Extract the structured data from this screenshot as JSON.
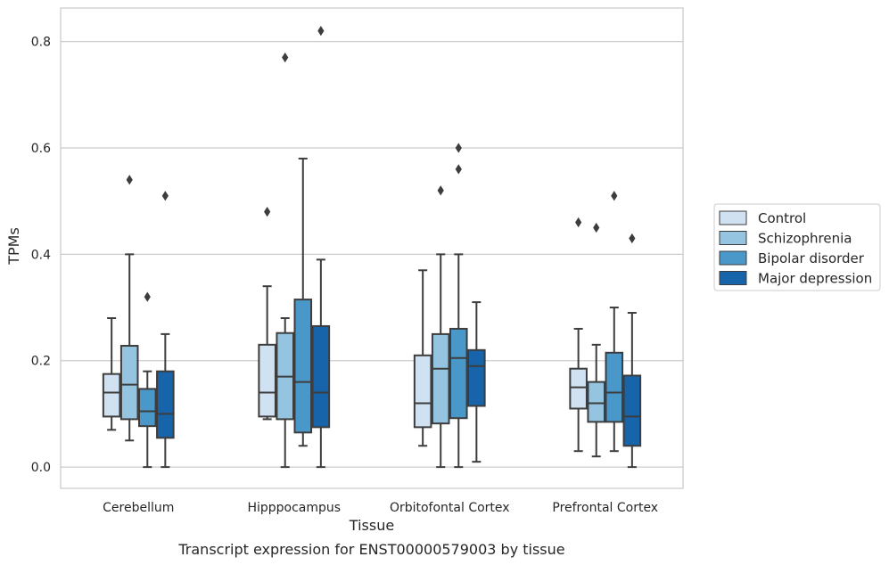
{
  "chart_data": {
    "type": "boxplot",
    "caption": "Transcript expression for ENST00000579003 by tissue",
    "xlabel": "Tissue",
    "ylabel": "TPMs",
    "ylim": [
      -0.04,
      0.863
    ],
    "yticks": [
      0.0,
      0.2,
      0.4,
      0.6,
      0.8
    ],
    "ytick_labels": [
      "0.0",
      "0.2",
      "0.4",
      "0.6",
      "0.8"
    ],
    "grid": "horizontal",
    "legend_position": "right",
    "categories": [
      "Cerebellum",
      "Hipppocampus",
      "Orbitofontal Cortex",
      "Prefrontal Cortex"
    ],
    "series": [
      {
        "name": "Control",
        "color": "#d0e1f2",
        "boxes": [
          {
            "whislo": 0.07,
            "q1": 0.095,
            "med": 0.14,
            "q3": 0.175,
            "whishi": 0.28,
            "fliers": []
          },
          {
            "whislo": 0.09,
            "q1": 0.095,
            "med": 0.14,
            "q3": 0.23,
            "whishi": 0.34,
            "fliers": [
              0.48
            ]
          },
          {
            "whislo": 0.04,
            "q1": 0.075,
            "med": 0.12,
            "q3": 0.21,
            "whishi": 0.37,
            "fliers": []
          },
          {
            "whislo": 0.03,
            "q1": 0.11,
            "med": 0.15,
            "q3": 0.185,
            "whishi": 0.26,
            "fliers": [
              0.46
            ]
          }
        ]
      },
      {
        "name": "Schizophrenia",
        "color": "#94c4df",
        "boxes": [
          {
            "whislo": 0.05,
            "q1": 0.09,
            "med": 0.155,
            "q3": 0.228,
            "whishi": 0.4,
            "fliers": [
              0.54
            ]
          },
          {
            "whislo": 0.0,
            "q1": 0.09,
            "med": 0.17,
            "q3": 0.252,
            "whishi": 0.28,
            "fliers": [
              0.77
            ]
          },
          {
            "whislo": 0.0,
            "q1": 0.082,
            "med": 0.185,
            "q3": 0.25,
            "whishi": 0.4,
            "fliers": [
              0.52
            ]
          },
          {
            "whislo": 0.02,
            "q1": 0.085,
            "med": 0.12,
            "q3": 0.16,
            "whishi": 0.23,
            "fliers": [
              0.45
            ]
          }
        ]
      },
      {
        "name": "Bipolar disorder",
        "color": "#4a98c9",
        "boxes": [
          {
            "whislo": 0.0,
            "q1": 0.077,
            "med": 0.105,
            "q3": 0.147,
            "whishi": 0.18,
            "fliers": [
              0.32
            ]
          },
          {
            "whislo": 0.04,
            "q1": 0.065,
            "med": 0.16,
            "q3": 0.315,
            "whishi": 0.58,
            "fliers": []
          },
          {
            "whislo": 0.0,
            "q1": 0.092,
            "med": 0.205,
            "q3": 0.26,
            "whishi": 0.4,
            "fliers": [
              0.56,
              0.6
            ]
          },
          {
            "whislo": 0.03,
            "q1": 0.085,
            "med": 0.14,
            "q3": 0.215,
            "whishi": 0.3,
            "fliers": [
              0.51
            ]
          }
        ]
      },
      {
        "name": "Major depression",
        "color": "#1764ab",
        "boxes": [
          {
            "whislo": 0.0,
            "q1": 0.055,
            "med": 0.1,
            "q3": 0.18,
            "whishi": 0.25,
            "fliers": [
              0.51
            ]
          },
          {
            "whislo": 0.0,
            "q1": 0.075,
            "med": 0.14,
            "q3": 0.265,
            "whishi": 0.39,
            "fliers": [
              0.82
            ]
          },
          {
            "whislo": 0.01,
            "q1": 0.115,
            "med": 0.19,
            "q3": 0.22,
            "whishi": 0.31,
            "fliers": []
          },
          {
            "whislo": 0.0,
            "q1": 0.04,
            "med": 0.095,
            "q3": 0.172,
            "whishi": 0.29,
            "fliers": [
              0.43
            ]
          }
        ]
      }
    ]
  }
}
